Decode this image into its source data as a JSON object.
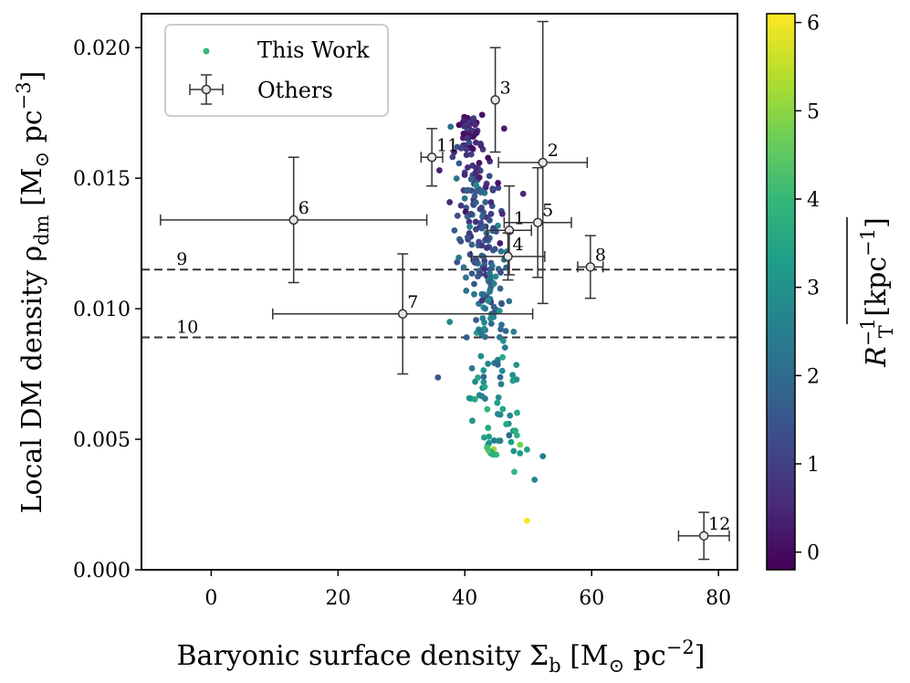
{
  "chart_data": {
    "type": "scatter",
    "xlabel": "Baryonic surface density Σ",
    "xlabel_sub": "b",
    "xlabel_unit": " [M",
    "xlabel_unit_sub": "⊙",
    "xlabel_unit2": " pc",
    "xlabel_unit_sup": "−2",
    "xlabel_close": "]",
    "ylabel": "Local DM density ρ",
    "ylabel_sub": "dm",
    "ylabel_unit": " [M",
    "ylabel_unit_sub": "⊙",
    "ylabel_unit2": " pc",
    "ylabel_unit_sup": "−3",
    "ylabel_close": "]",
    "xlim": [
      -11,
      83
    ],
    "ylim": [
      0.0,
      0.0213
    ],
    "xticks": [
      0,
      20,
      40,
      60,
      80
    ],
    "xtick_labels": [
      "0",
      "20",
      "40",
      "60",
      "80"
    ],
    "yticks": [
      0.0,
      0.005,
      0.01,
      0.015,
      0.02
    ],
    "ytick_labels": [
      "0.000",
      "0.005",
      "0.010",
      "0.015",
      "0.020"
    ],
    "colorbar": {
      "label": "R",
      "label_sup": "−1",
      "label_sub": "T",
      "label_unit": " [kpc",
      "label_unit_sup": "−1",
      "label_close": "]",
      "range": [
        -0.2,
        6.1
      ],
      "ticks": [
        0,
        1,
        2,
        3,
        4,
        5,
        6
      ],
      "tick_labels": [
        "0",
        "1",
        "2",
        "3",
        "4",
        "5",
        "6"
      ],
      "colormap": "viridis"
    },
    "legend": {
      "position": "top-left",
      "entries": [
        "This Work",
        "Others"
      ]
    },
    "series": [
      {
        "name": "This Work",
        "seed": 7,
        "count": 300,
        "points_sample": [
          {
            "x": 49.8,
            "y": 0.00188,
            "c": 6.0
          },
          {
            "x": 43.5,
            "y": 0.00468,
            "c": 4.2
          },
          {
            "x": 47.8,
            "y": 0.00375,
            "c": 4.0
          },
          {
            "x": 52.3,
            "y": 0.00435,
            "c": 2.4
          },
          {
            "x": 51.0,
            "y": 0.00345,
            "c": 2.7
          },
          {
            "x": 41.3,
            "y": 0.0172,
            "c": 0.6
          },
          {
            "x": 46.2,
            "y": 0.0169,
            "c": 0.3
          },
          {
            "x": 49.2,
            "y": 0.0144,
            "c": 0.5
          }
        ]
      },
      {
        "name": "Others",
        "points": [
          {
            "label": "1",
            "x": 47.0,
            "y": 0.013,
            "xerr": [
              3.5,
              3.5
            ],
            "yerr": [
              0.0017,
              0.0017
            ]
          },
          {
            "label": "2",
            "x": 52.3,
            "y": 0.0156,
            "xerr": [
              7.0,
              7.0
            ],
            "yerr": [
              0.0054,
              0.0054
            ]
          },
          {
            "label": "3",
            "x": 44.8,
            "y": 0.018,
            "xerr": [
              0.0,
              0.0
            ],
            "yerr": [
              0.002,
              0.002
            ]
          },
          {
            "label": "4",
            "x": 46.8,
            "y": 0.012,
            "xerr": [
              5.8,
              5.8
            ],
            "yerr": [
              0.0009,
              0.0009
            ]
          },
          {
            "label": "5",
            "x": 51.5,
            "y": 0.0133,
            "xerr": [
              5.3,
              5.3
            ],
            "yerr": [
              0.0021,
              0.0021
            ]
          },
          {
            "label": "6",
            "x": 13.0,
            "y": 0.0134,
            "xerr": [
              21.0,
              21.0
            ],
            "yerr": [
              0.0024,
              0.0024
            ]
          },
          {
            "label": "7",
            "x": 30.2,
            "y": 0.0098,
            "xerr": [
              20.5,
              20.5
            ],
            "yerr": [
              0.0023,
              0.0023
            ]
          },
          {
            "label": "8",
            "x": 59.8,
            "y": 0.0116,
            "xerr": [
              2.0,
              2.0
            ],
            "yerr": [
              0.0012,
              0.0012
            ]
          },
          {
            "label": "11",
            "x": 34.8,
            "y": 0.0158,
            "xerr": [
              1.7,
              1.7
            ],
            "yerr": [
              0.0011,
              0.0011
            ]
          },
          {
            "label": "12",
            "x": 77.7,
            "y": 0.0013,
            "xerr": [
              4.0,
              4.0
            ],
            "yerr": [
              0.0009,
              0.0009
            ]
          }
        ]
      }
    ],
    "hlines": [
      {
        "label": "9",
        "y": 0.0115
      },
      {
        "label": "10",
        "y": 0.0089
      }
    ]
  }
}
